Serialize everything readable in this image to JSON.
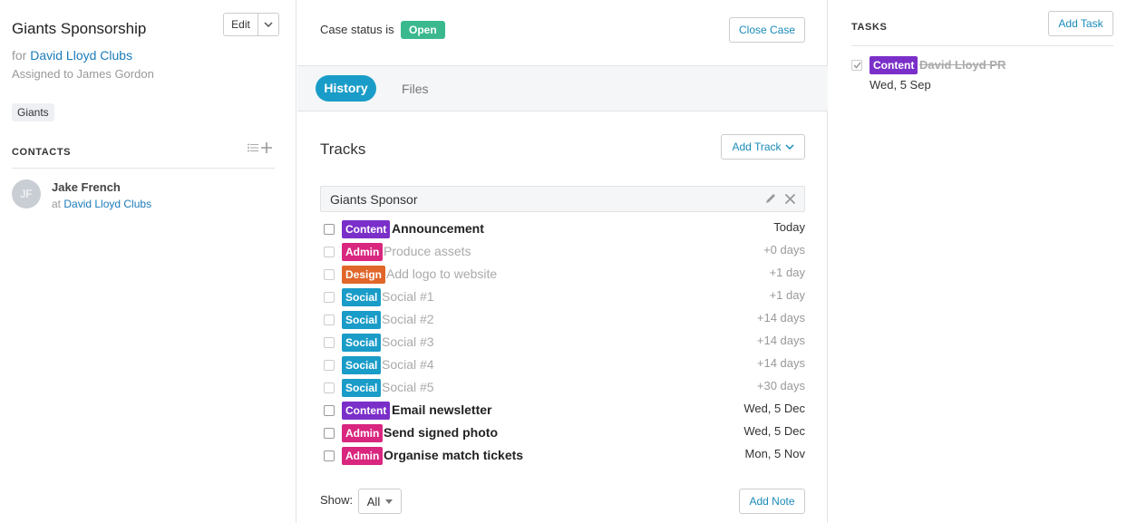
{
  "case": {
    "title": "Giants Sponsorship",
    "edit_label": "Edit",
    "for_prefix": "for",
    "client": "David Lloyd Clubs",
    "assigned": "Assigned to James Gordon",
    "tag": "Giants"
  },
  "contacts": {
    "heading": "CONTACTS",
    "items": [
      {
        "initials": "JF",
        "name": "Jake French",
        "at": "at",
        "org": "David Lloyd Clubs"
      }
    ]
  },
  "status": {
    "label": "Case status is",
    "value": "Open",
    "close_label": "Close Case"
  },
  "tabs": [
    {
      "label": "History",
      "active": true
    },
    {
      "label": "Files",
      "active": false
    }
  ],
  "tracks": {
    "heading": "Tracks",
    "add_label": "Add Track",
    "group_name": "Giants Sponsor",
    "items": [
      {
        "category": "Content",
        "color": "#7b2fc9",
        "title": "Announcement",
        "due": "Today",
        "muted": false
      },
      {
        "category": "Admin",
        "color": "#d9267f",
        "title": "Produce assets",
        "due": "+0 days",
        "muted": true
      },
      {
        "category": "Design",
        "color": "#e0662a",
        "title": "Add logo to website",
        "due": "+1 day",
        "muted": true
      },
      {
        "category": "Social",
        "color": "#1a9cc8",
        "title": "Social #1",
        "due": "+1 day",
        "muted": true
      },
      {
        "category": "Social",
        "color": "#1a9cc8",
        "title": "Social #2",
        "due": "+14 days",
        "muted": true
      },
      {
        "category": "Social",
        "color": "#1a9cc8",
        "title": "Social #3",
        "due": "+14 days",
        "muted": true
      },
      {
        "category": "Social",
        "color": "#1a9cc8",
        "title": "Social #4",
        "due": "+14 days",
        "muted": true
      },
      {
        "category": "Social",
        "color": "#1a9cc8",
        "title": "Social #5",
        "due": "+30 days",
        "muted": true
      },
      {
        "category": "Content",
        "color": "#7b2fc9",
        "title": "Email newsletter",
        "due": "Wed, 5 Dec",
        "muted": false
      },
      {
        "category": "Admin",
        "color": "#d9267f",
        "title": "Send signed photo",
        "due": "Wed, 5 Dec",
        "muted": false
      },
      {
        "category": "Admin",
        "color": "#d9267f",
        "title": "Organise match tickets",
        "due": "Mon, 5 Nov",
        "muted": false
      }
    ]
  },
  "footer": {
    "show_label": "Show:",
    "show_value": "All",
    "add_note_label": "Add Note"
  },
  "tasks": {
    "heading": "TASKS",
    "add_label": "Add Task",
    "items": [
      {
        "category": "Content",
        "title": "David Lloyd PR",
        "date": "Wed, 5 Sep",
        "done": true
      }
    ]
  }
}
